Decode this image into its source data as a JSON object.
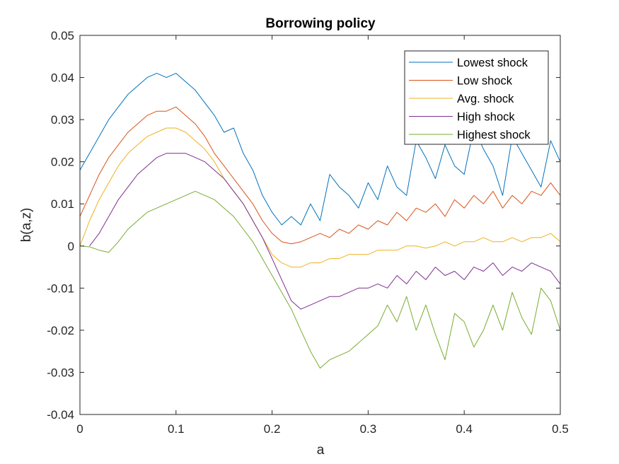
{
  "chart_data": {
    "type": "line",
    "title": "Borrowing policy",
    "xlabel": "a",
    "ylabel": "b(a,z)",
    "xlim": [
      0,
      0.5
    ],
    "ylim": [
      -0.04,
      0.05
    ],
    "xticks": [
      0,
      0.1,
      0.2,
      0.3,
      0.4,
      0.5
    ],
    "xtick_labels": [
      "0",
      "0.1",
      "0.2",
      "0.3",
      "0.4",
      "0.5"
    ],
    "yticks": [
      -0.04,
      -0.03,
      -0.02,
      -0.01,
      0,
      0.01,
      0.02,
      0.03,
      0.04,
      0.05
    ],
    "ytick_labels": [
      "-0.04",
      "-0.03",
      "-0.02",
      "-0.01",
      "0",
      "0.01",
      "0.02",
      "0.03",
      "0.04",
      "0.05"
    ],
    "grid": false,
    "legend_position": "top-right",
    "series": [
      {
        "name": "Lowest shock",
        "color": "#0072BD",
        "x": [
          0,
          0.01,
          0.02,
          0.03,
          0.04,
          0.05,
          0.06,
          0.07,
          0.08,
          0.09,
          0.1,
          0.11,
          0.12,
          0.13,
          0.14,
          0.15,
          0.16,
          0.17,
          0.18,
          0.19,
          0.2,
          0.21,
          0.22,
          0.23,
          0.24,
          0.25,
          0.26,
          0.27,
          0.28,
          0.29,
          0.3,
          0.31,
          0.32,
          0.33,
          0.34,
          0.35,
          0.36,
          0.37,
          0.38,
          0.39,
          0.4,
          0.41,
          0.42,
          0.43,
          0.44,
          0.45,
          0.46,
          0.47,
          0.48,
          0.49,
          0.5
        ],
        "y": [
          0.018,
          0.022,
          0.026,
          0.03,
          0.033,
          0.036,
          0.038,
          0.04,
          0.041,
          0.04,
          0.041,
          0.039,
          0.037,
          0.034,
          0.031,
          0.027,
          0.028,
          0.022,
          0.018,
          0.012,
          0.008,
          0.005,
          0.007,
          0.005,
          0.01,
          0.006,
          0.017,
          0.014,
          0.012,
          0.009,
          0.015,
          0.011,
          0.019,
          0.014,
          0.012,
          0.025,
          0.021,
          0.016,
          0.024,
          0.019,
          0.017,
          0.028,
          0.023,
          0.019,
          0.012,
          0.026,
          0.022,
          0.018,
          0.014,
          0.025,
          0.02
        ]
      },
      {
        "name": "Low shock",
        "color": "#D95319",
        "x": [
          0,
          0.01,
          0.02,
          0.03,
          0.04,
          0.05,
          0.06,
          0.07,
          0.08,
          0.09,
          0.1,
          0.11,
          0.12,
          0.13,
          0.14,
          0.15,
          0.16,
          0.17,
          0.18,
          0.19,
          0.2,
          0.21,
          0.22,
          0.23,
          0.24,
          0.25,
          0.26,
          0.27,
          0.28,
          0.29,
          0.3,
          0.31,
          0.32,
          0.33,
          0.34,
          0.35,
          0.36,
          0.37,
          0.38,
          0.39,
          0.4,
          0.41,
          0.42,
          0.43,
          0.44,
          0.45,
          0.46,
          0.47,
          0.48,
          0.49,
          0.5
        ],
        "y": [
          0.007,
          0.012,
          0.017,
          0.021,
          0.024,
          0.027,
          0.029,
          0.031,
          0.032,
          0.032,
          0.033,
          0.031,
          0.029,
          0.026,
          0.022,
          0.019,
          0.016,
          0.013,
          0.01,
          0.006,
          0.003,
          0.001,
          0.0005,
          0.001,
          0.002,
          0.003,
          0.002,
          0.004,
          0.003,
          0.005,
          0.004,
          0.006,
          0.005,
          0.008,
          0.006,
          0.009,
          0.008,
          0.01,
          0.007,
          0.011,
          0.009,
          0.012,
          0.01,
          0.013,
          0.009,
          0.012,
          0.01,
          0.013,
          0.012,
          0.015,
          0.012
        ]
      },
      {
        "name": "Avg. shock",
        "color": "#EDB120",
        "x": [
          0,
          0.01,
          0.02,
          0.03,
          0.04,
          0.05,
          0.06,
          0.07,
          0.08,
          0.09,
          0.1,
          0.11,
          0.12,
          0.13,
          0.14,
          0.15,
          0.16,
          0.17,
          0.18,
          0.19,
          0.2,
          0.21,
          0.22,
          0.23,
          0.24,
          0.25,
          0.26,
          0.27,
          0.28,
          0.29,
          0.3,
          0.31,
          0.32,
          0.33,
          0.34,
          0.35,
          0.36,
          0.37,
          0.38,
          0.39,
          0.4,
          0.41,
          0.42,
          0.43,
          0.44,
          0.45,
          0.46,
          0.47,
          0.48,
          0.49,
          0.5
        ],
        "y": [
          0.0,
          0.006,
          0.011,
          0.015,
          0.019,
          0.022,
          0.024,
          0.026,
          0.027,
          0.028,
          0.028,
          0.027,
          0.025,
          0.023,
          0.02,
          0.016,
          0.013,
          0.01,
          0.006,
          0.002,
          -0.002,
          -0.004,
          -0.005,
          -0.005,
          -0.004,
          -0.004,
          -0.003,
          -0.003,
          -0.002,
          -0.002,
          -0.002,
          -0.001,
          -0.001,
          -0.001,
          0.0,
          0.0,
          -0.0005,
          0.0,
          0.001,
          0.0,
          0.001,
          0.001,
          0.002,
          0.001,
          0.001,
          0.002,
          0.001,
          0.002,
          0.002,
          0.003,
          0.001
        ]
      },
      {
        "name": "High shock",
        "color": "#7E2F8E",
        "x": [
          0.01,
          0.02,
          0.03,
          0.04,
          0.05,
          0.06,
          0.07,
          0.08,
          0.09,
          0.1,
          0.11,
          0.12,
          0.13,
          0.14,
          0.15,
          0.16,
          0.17,
          0.18,
          0.19,
          0.2,
          0.21,
          0.22,
          0.23,
          0.24,
          0.25,
          0.26,
          0.27,
          0.28,
          0.29,
          0.3,
          0.31,
          0.32,
          0.33,
          0.34,
          0.35,
          0.36,
          0.37,
          0.38,
          0.39,
          0.4,
          0.41,
          0.42,
          0.43,
          0.44,
          0.45,
          0.46,
          0.47,
          0.48,
          0.49,
          0.5
        ],
        "y": [
          0.0,
          0.003,
          0.007,
          0.011,
          0.014,
          0.017,
          0.019,
          0.021,
          0.022,
          0.022,
          0.022,
          0.021,
          0.02,
          0.018,
          0.016,
          0.013,
          0.01,
          0.006,
          0.002,
          -0.003,
          -0.008,
          -0.013,
          -0.015,
          -0.014,
          -0.013,
          -0.012,
          -0.012,
          -0.011,
          -0.01,
          -0.01,
          -0.009,
          -0.01,
          -0.007,
          -0.009,
          -0.006,
          -0.008,
          -0.005,
          -0.007,
          -0.006,
          -0.008,
          -0.005,
          -0.006,
          -0.004,
          -0.007,
          -0.005,
          -0.006,
          -0.004,
          -0.005,
          -0.006,
          -0.009
        ]
      },
      {
        "name": "Highest shock",
        "color": "#77AC30",
        "x": [
          0,
          0.01,
          0.02,
          0.03,
          0.04,
          0.05,
          0.06,
          0.07,
          0.08,
          0.09,
          0.1,
          0.11,
          0.12,
          0.13,
          0.14,
          0.15,
          0.16,
          0.17,
          0.18,
          0.19,
          0.2,
          0.21,
          0.22,
          0.23,
          0.24,
          0.25,
          0.26,
          0.27,
          0.28,
          0.29,
          0.3,
          0.31,
          0.32,
          0.33,
          0.34,
          0.35,
          0.36,
          0.37,
          0.38,
          0.39,
          0.4,
          0.41,
          0.42,
          0.43,
          0.44,
          0.45,
          0.46,
          0.47,
          0.48,
          0.49,
          0.5
        ],
        "y": [
          0.0,
          -0.0002,
          -0.001,
          -0.0015,
          0.001,
          0.004,
          0.006,
          0.008,
          0.009,
          0.01,
          0.011,
          0.012,
          0.013,
          0.012,
          0.011,
          0.009,
          0.007,
          0.004,
          0.001,
          -0.003,
          -0.007,
          -0.011,
          -0.015,
          -0.02,
          -0.025,
          -0.029,
          -0.027,
          -0.026,
          -0.025,
          -0.023,
          -0.021,
          -0.019,
          -0.014,
          -0.018,
          -0.012,
          -0.02,
          -0.014,
          -0.021,
          -0.027,
          -0.016,
          -0.018,
          -0.024,
          -0.02,
          -0.014,
          -0.02,
          -0.011,
          -0.017,
          -0.021,
          -0.01,
          -0.013,
          -0.02
        ]
      }
    ]
  }
}
